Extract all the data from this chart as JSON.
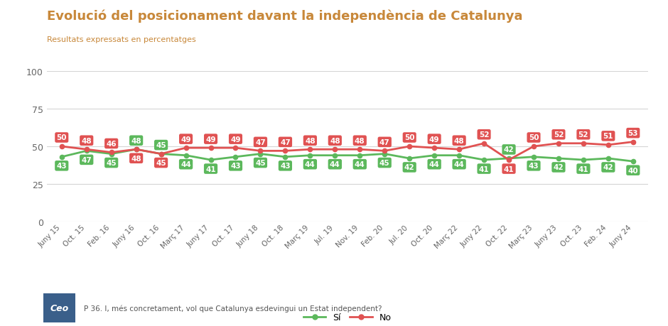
{
  "title": "Evolució del posicionament davant la independència de Catalunya",
  "subtitle": "Resultats expressats en percentatges",
  "title_color": "#c8883a",
  "subtitle_color": "#c8883a",
  "labels": [
    "Juny 15",
    "Oct. 15",
    "Feb. 16",
    "Juny 16",
    "Oct. 16",
    "Març 17",
    "Juny 17",
    "Oct. 17",
    "Juny 18",
    "Oct. 18",
    "Març 19",
    "Jul. 19",
    "Nov. 19",
    "Feb. 20",
    "Jul. 20",
    "Oct. 20",
    "Març 22",
    "Juny 22",
    "Oct. 22",
    "Març 23",
    "Juny 23",
    "Oct. 23",
    "Feb. 24",
    "Juny 24"
  ],
  "si_values": [
    43,
    47,
    45,
    48,
    45,
    44,
    41,
    43,
    45,
    43,
    44,
    44,
    44,
    45,
    42,
    44,
    44,
    41,
    42,
    43,
    42,
    41,
    42,
    40
  ],
  "no_values": [
    50,
    48,
    46,
    48,
    45,
    49,
    49,
    49,
    47,
    47,
    48,
    48,
    48,
    47,
    50,
    49,
    48,
    52,
    41,
    50,
    52,
    52,
    51,
    53
  ],
  "si_color": "#5cb85c",
  "no_color": "#e05252",
  "si_label": "Sí",
  "no_label": "No",
  "ylim": [
    0,
    100
  ],
  "yticks": [
    0,
    25,
    50,
    75,
    100
  ],
  "footnote": "P 36. I, més concretament, vol que Catalunya esdevingui un Estat independent?",
  "bg_color": "#ffffff",
  "grid_color": "#d5d5d5"
}
